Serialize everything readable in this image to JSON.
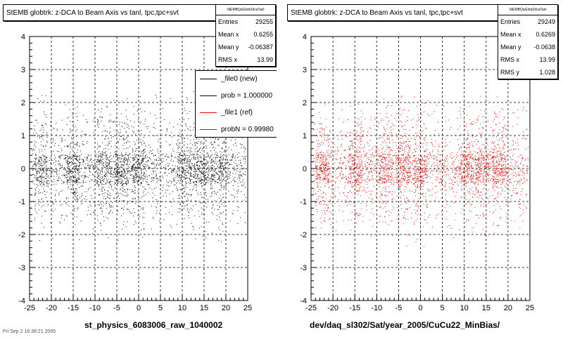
{
  "chart_data": [
    {
      "type": "scatter",
      "title": "StEMB globtrk: z-DCA to Beam Axis vs tanl, tpc,tpc+svt",
      "xlabel": "st_physics_6083006_raw_1040002",
      "ylabel": "",
      "xlim": [
        -25,
        25
      ],
      "ylim": [
        -4,
        4
      ],
      "xticks": [
        "-25",
        "-20",
        "-15",
        "-10",
        "-5",
        "0",
        "5",
        "10",
        "15",
        "20",
        "25"
      ],
      "yticks": [
        "-4",
        "-3",
        "-2",
        "-1",
        "0",
        "1",
        "2",
        "3",
        "4"
      ],
      "grid": true,
      "marker_color": "#000000",
      "stats": {
        "name": "StEMBQaGlobZdcaTanl",
        "rows": [
          {
            "label": "Entries",
            "value": "29255"
          },
          {
            "label": "Mean x",
            "value": "0.6255"
          },
          {
            "label": "Mean y",
            "value": "-0.06387"
          },
          {
            "label": "RMS x",
            "value": "13.99"
          }
        ]
      },
      "legend": {
        "placement": "top-right",
        "entries": [
          {
            "label": "_file0 (new)",
            "color": "#000000"
          },
          {
            "label": "prob = 1.000000",
            "color": "#000000"
          },
          {
            "label": "_file1 (ref)",
            "color": "#ff0000"
          },
          {
            "label": "probN = 0.99980",
            "color": "#ff0000"
          }
        ]
      },
      "footer": "Fri Sep  2 16:38:21 2005"
    },
    {
      "type": "scatter",
      "title": "StEMB globtrk: z-DCA to Beam Axis vs tanl, tpc,tpc+svt",
      "xlabel": "dev/daq_sl302/Sat/year_2005/CuCu22_MinBias/",
      "ylabel": "",
      "xlim": [
        -25,
        25
      ],
      "ylim": [
        -4,
        4
      ],
      "xticks": [
        "-25",
        "-20",
        "-15",
        "-10",
        "-5",
        "0",
        "5",
        "10",
        "15",
        "20",
        "25"
      ],
      "yticks": [
        "-4",
        "-3",
        "-2",
        "-1",
        "0",
        "1",
        "2",
        "3",
        "4"
      ],
      "grid": true,
      "marker_color": "#ff0000",
      "stats": {
        "name": "StEMBQaGlobZdcaTanl",
        "rows": [
          {
            "label": "Entries",
            "value": "29249"
          },
          {
            "label": "Mean x",
            "value": "0.6269"
          },
          {
            "label": "Mean y",
            "value": "-0.0638"
          },
          {
            "label": "RMS x",
            "value": "13.99"
          },
          {
            "label": "RMS y",
            "value": "1.028"
          }
        ]
      }
    }
  ]
}
